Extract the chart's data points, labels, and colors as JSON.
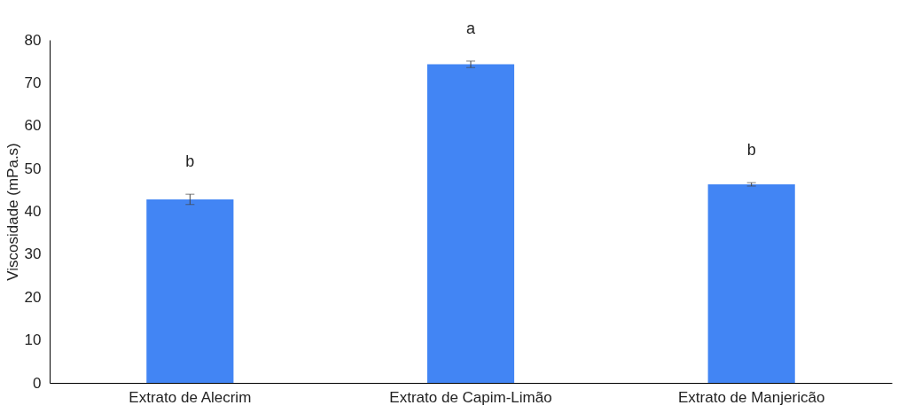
{
  "chart_data": {
    "type": "bar",
    "ylabel": "Viscosidade (mPa.s)",
    "categories": [
      "Extrato de Alecrim",
      "Extrato de Capim-Limão",
      "Extrato de Manjericão"
    ],
    "values": [
      42.8,
      74.3,
      46.3
    ],
    "errors": [
      1.2,
      0.75,
      0.4
    ],
    "color": "#4285f4",
    "ylim": [
      0,
      80
    ],
    "yticks": [
      0,
      10,
      20,
      30,
      40,
      50,
      60,
      70,
      80
    ],
    "grid": false,
    "annotations": [
      "b",
      "a",
      "b"
    ]
  }
}
